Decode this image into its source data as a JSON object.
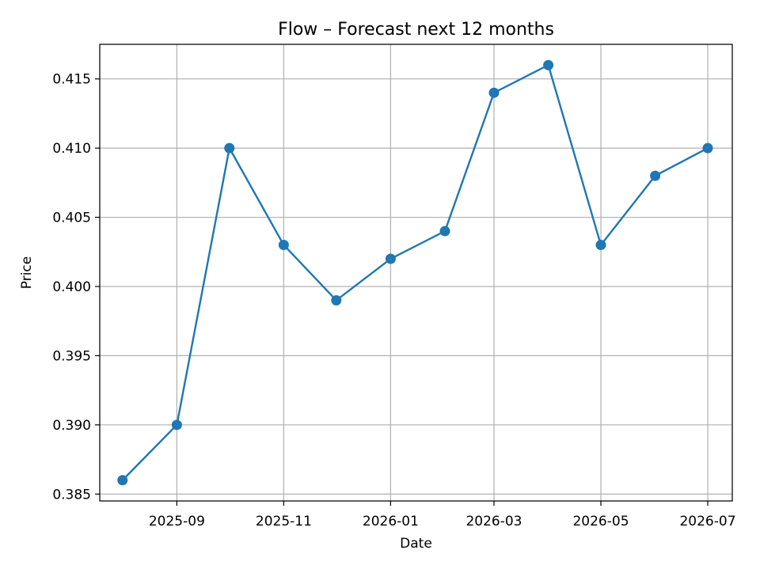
{
  "chart_data": {
    "type": "line",
    "title": "Flow – Forecast next 12 months",
    "xlabel": "Date",
    "ylabel": "Price",
    "x": [
      "2025-08-01",
      "2025-09-01",
      "2025-10-01",
      "2025-11-01",
      "2025-12-01",
      "2026-01-01",
      "2026-02-01",
      "2026-03-01",
      "2026-04-01",
      "2026-05-01",
      "2026-06-01",
      "2026-07-01"
    ],
    "series": [
      {
        "values": [
          0.386,
          0.39,
          0.41,
          0.403,
          0.399,
          0.402,
          0.404,
          0.414,
          0.416,
          0.403,
          0.408,
          0.41
        ]
      }
    ],
    "x_ticks": [
      "2025-09",
      "2025-11",
      "2026-01",
      "2026-03",
      "2026-05",
      "2026-07"
    ],
    "y_ticks": [
      "0.385",
      "0.390",
      "0.395",
      "0.400",
      "0.405",
      "0.410",
      "0.415"
    ],
    "ylim": [
      0.3845,
      0.4175
    ],
    "xlim": [
      "2025-07-19",
      "2026-07-15"
    ],
    "grid": true,
    "line_color": "#1f77b4",
    "marker": "circle"
  }
}
